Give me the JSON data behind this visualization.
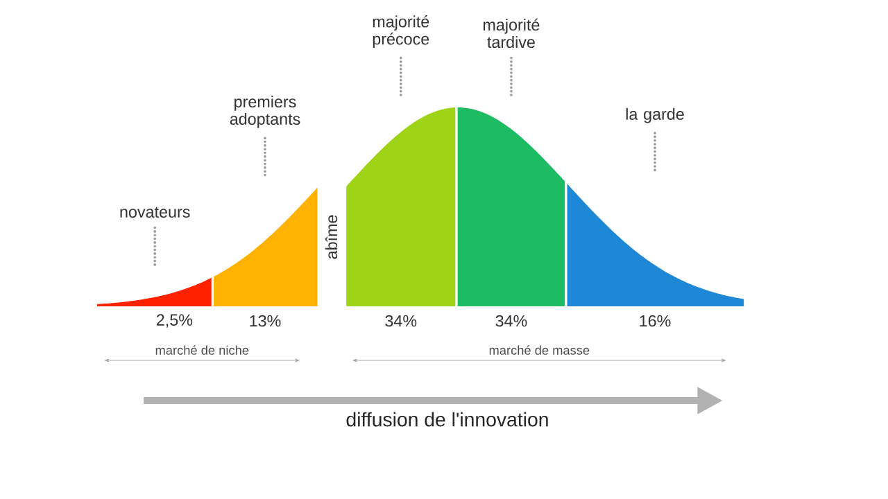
{
  "chart_data": {
    "type": "other",
    "categories": [
      "novateurs",
      "premiers adoptants",
      "majorité précoce",
      "majorité tardive",
      "la garde"
    ],
    "values": [
      2.5,
      13,
      34,
      34,
      16
    ],
    "value_labels": [
      "2,5%",
      "13%",
      "34%",
      "34%",
      "16%"
    ],
    "colors": [
      "#ff2200",
      "#ffb300",
      "#9fd317",
      "#1dbb62",
      "#1e88d6"
    ],
    "annotations": [
      "abîme",
      "marché de niche",
      "marché de masse",
      "diffusion de l'innovation"
    ]
  }
}
